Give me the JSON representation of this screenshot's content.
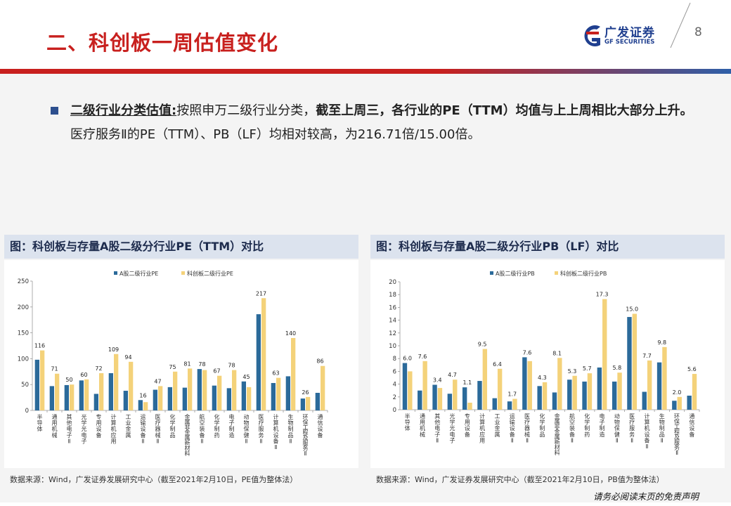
{
  "header": {
    "title": "二、科创板一周估值变化",
    "page_number": "8",
    "logo": {
      "name_cn": "广发证券",
      "name_en": "GF SECURITIES",
      "icon": "gf-logo-icon"
    },
    "colors": {
      "brand_red": "#c8201e",
      "brand_blue": "#2e5fa8"
    }
  },
  "summary": {
    "lead": "二级行业分类估值:",
    "text1": "按照申万二级行业分类，",
    "bold": "截至上周三，各行业的PE（TTM）均值与上上周相比大部分上升。",
    "text2": "医疗服务Ⅱ的PE（TTM）、PB（LF）均相对较高，为216.71倍/15.00倍。"
  },
  "chart_data": [
    {
      "type": "bar",
      "title": "图：科创板与存量A股二级分行业PE（TTM）对比",
      "categories": [
        "半导体",
        "通用机械",
        "其他电子Ⅱ",
        "光学光电子",
        "专用设备",
        "计算机应用",
        "工业金属",
        "运输设备Ⅱ",
        "医疗器械Ⅱ",
        "化学制品",
        "金属非金属新材料",
        "航空装备Ⅱ",
        "化学制药",
        "电子制造",
        "动物保健Ⅱ",
        "医疗服务Ⅱ",
        "计算机设备Ⅱ",
        "生物制品Ⅱ",
        "环保工程及服务Ⅱ",
        "通信设备"
      ],
      "series": [
        {
          "name": "A股二级行业PE",
          "color": "#2b6a9a",
          "values": [
            98,
            47,
            49,
            58,
            32,
            72,
            38,
            20,
            40,
            45,
            44,
            80,
            48,
            43,
            56,
            186,
            53,
            66,
            23,
            34
          ]
        },
        {
          "name": "科创板二级行业PE",
          "color": "#f4d27a",
          "values": [
            116,
            71,
            50,
            60,
            72,
            109,
            94,
            16,
            47,
            75,
            81,
            78,
            67,
            78,
            45,
            217,
            63,
            140,
            26,
            86
          ]
        }
      ],
      "data_labels": [
        "116",
        "71",
        "50",
        "60",
        "72",
        "109",
        "94",
        "16",
        "47",
        "75",
        "81",
        "78",
        "67",
        "78",
        "45",
        "217",
        "63",
        "140",
        "26",
        "86"
      ],
      "ylim": [
        0,
        250
      ],
      "yticks": [
        0,
        50,
        100,
        150,
        200,
        250
      ],
      "legend": "top",
      "grid": false,
      "source": "数据来源：Wind，广发证券发展研究中心（截至2021年2月10日，PE值为整体法）"
    },
    {
      "type": "bar",
      "title": "图：科创板与存量A股二级分行业PB（LF）对比",
      "categories": [
        "半导体",
        "通用机械",
        "其他电子Ⅱ",
        "光学光电子",
        "专用设备",
        "计算机应用",
        "工业金属",
        "运输设备Ⅱ",
        "医疗器械Ⅱ",
        "化学制品",
        "金属非金属新材料",
        "航空装备Ⅱ",
        "化学制药",
        "电子制造",
        "动物保健Ⅱ",
        "医疗服务Ⅱ",
        "计算机设备Ⅱ",
        "生物制品Ⅱ",
        "环保工程及服务Ⅱ",
        "通信设备"
      ],
      "series": [
        {
          "name": "A股二级行业PB",
          "color": "#2b6a9a",
          "values": [
            7.3,
            3.0,
            3.9,
            2.5,
            3.5,
            4.5,
            1.8,
            1.3,
            8.2,
            3.7,
            2.7,
            4.7,
            4.4,
            6.6,
            4.4,
            14.5,
            2.8,
            7.4,
            1.4,
            2.2
          ]
        },
        {
          "name": "科创板二级行业PB",
          "color": "#f4d27a",
          "values": [
            6.0,
            7.6,
            3.4,
            4.7,
            1.1,
            9.5,
            6.4,
            1.7,
            7.6,
            4.3,
            8.1,
            5.3,
            5.7,
            17.3,
            5.8,
            15.0,
            7.7,
            9.8,
            2.0,
            5.6
          ]
        }
      ],
      "data_labels": [
        "6.0",
        "7.6",
        "3.4",
        "4.7",
        "1.1",
        "9.5",
        "6.4",
        "1.7",
        "7.6",
        "4.3",
        "8.1",
        "5.3",
        "5.7",
        "17.3",
        "5.8",
        "15.0",
        "7.7",
        "9.8",
        "2.0",
        "5.6"
      ],
      "ylim": [
        0,
        20
      ],
      "yticks": [
        0,
        2,
        4,
        6,
        8,
        10,
        12,
        14,
        16,
        18,
        20
      ],
      "legend": "top",
      "grid": false,
      "source": "数据来源：Wind，广发证券发展研究中心（截至2021年2月10日，PB值为整体法）"
    }
  ],
  "footer": {
    "disclaimer": "请务必阅读末页的免责声明"
  }
}
